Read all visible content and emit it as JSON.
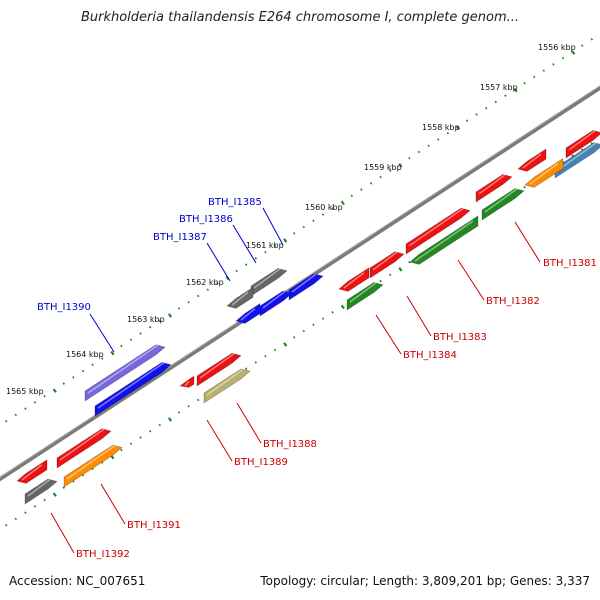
{
  "title": "Burkholderia thailandensis E264 chromosome I, complete genom...",
  "footer": {
    "accession": "Accession: NC_007651",
    "info": "Topology: circular; Length: 3,809,201 bp; Genes: 3,337"
  },
  "ticks": [
    {
      "label": "1556 kbp"
    },
    {
      "label": "1557 kbp"
    },
    {
      "label": "1558 kbp"
    },
    {
      "label": "1559 kbp"
    },
    {
      "label": "1560 kbp"
    },
    {
      "label": "1561 kbp"
    },
    {
      "label": "1562 kbp"
    },
    {
      "label": "1563 kbp"
    },
    {
      "label": "1564 kbp"
    },
    {
      "label": "1565 kbp"
    }
  ],
  "colors": {
    "red": "#ee1111",
    "blue": "#1111ee",
    "grey": "#666666",
    "purple": "#7766dd",
    "orange": "#ff8c00",
    "olive": "#b8b070",
    "green": "#228822",
    "lime": "#aaee22",
    "steel": "#4682b4",
    "plus_label": "#0000cc",
    "minus_label": "#cc0000",
    "backbone": "#888888",
    "tick": "#228822"
  },
  "genes_top": [
    {
      "label": "BTH_I1385"
    },
    {
      "label": "BTH_I1386"
    },
    {
      "label": "BTH_I1387"
    },
    {
      "label": "BTH_I1390"
    }
  ],
  "genes_bottom": [
    {
      "label": "BTH_I1381"
    },
    {
      "label": "BTH_I1382"
    },
    {
      "label": "BTH_I1383"
    },
    {
      "label": "BTH_I1384"
    },
    {
      "label": "BTH_I1388"
    },
    {
      "label": "BTH_I1389"
    },
    {
      "label": "BTH_I1391"
    },
    {
      "label": "BTH_I1392"
    }
  ]
}
